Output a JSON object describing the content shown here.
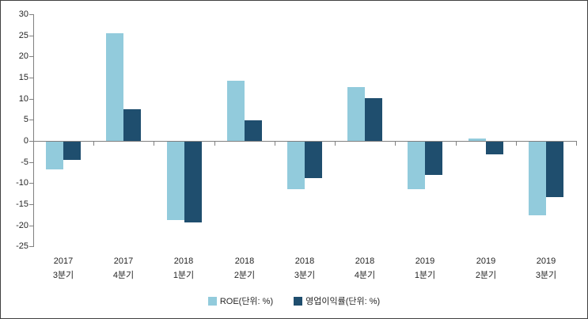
{
  "chart_data": {
    "type": "bar",
    "title": "",
    "xlabel": "",
    "ylabel": "",
    "categories": [
      {
        "year": "2017",
        "quarter": "3분기"
      },
      {
        "year": "2017",
        "quarter": "4분기"
      },
      {
        "year": "2018",
        "quarter": "1분기"
      },
      {
        "year": "2018",
        "quarter": "2분기"
      },
      {
        "year": "2018",
        "quarter": "3분기"
      },
      {
        "year": "2018",
        "quarter": "4분기"
      },
      {
        "year": "2019",
        "quarter": "1분기"
      },
      {
        "year": "2019",
        "quarter": "2분기"
      },
      {
        "year": "2019",
        "quarter": "3분기"
      }
    ],
    "series": [
      {
        "key": "roe",
        "name": "ROE(단위: %)",
        "color": "#92CBDC",
        "values": [
          -6.5,
          25.6,
          -18.6,
          14.3,
          -11.3,
          12.8,
          -11.3,
          0.5,
          -17.5
        ]
      },
      {
        "key": "operating-margin",
        "name": "영업이익률(단위: %)",
        "color": "#1F4E6E",
        "values": [
          -4.3,
          7.5,
          -19.2,
          4.8,
          -8.6,
          10.2,
          -7.8,
          -3.0,
          -13.2
        ]
      }
    ],
    "ylim": [
      -25,
      30
    ],
    "yticks": [
      30,
      25,
      20,
      15,
      10,
      5,
      0,
      -5,
      -10,
      -15,
      -20,
      -25
    ],
    "grid": false,
    "legend_position": "bottom"
  },
  "colors": {
    "axis": "#808080",
    "text": "#262626",
    "background": "#FFFFFF",
    "border": "#404040"
  }
}
